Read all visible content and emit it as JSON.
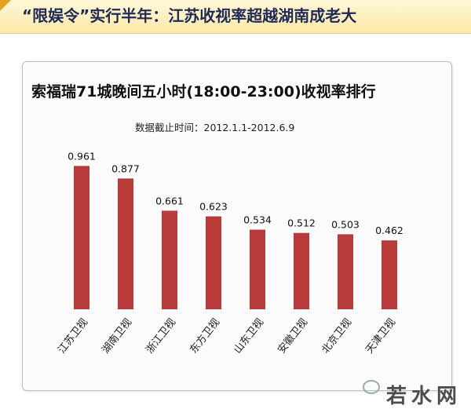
{
  "headline": "“限娱令”实行半年：江苏收视率超越湖南成老大",
  "watermark": "若水网",
  "chart_data": {
    "type": "bar",
    "title": "索福瑞71城晚间五小时(18:00-23:00)收视率排行",
    "subtitle": "数据截止时间：2012.1.1-2012.6.9",
    "categories": [
      "江苏卫视",
      "湖南卫视",
      "浙江卫视",
      "东方卫视",
      "山东卫视",
      "安徽卫视",
      "北京卫视",
      "天津卫视"
    ],
    "values": [
      0.961,
      0.877,
      0.661,
      0.623,
      0.534,
      0.512,
      0.503,
      0.462
    ],
    "data_labels": [
      "0.961",
      "0.877",
      "0.661",
      "0.623",
      "0.534",
      "0.512",
      "0.503",
      "0.462"
    ],
    "ylim": [
      0,
      1.2
    ],
    "grid": false,
    "bar_color": "#b83b3b"
  }
}
